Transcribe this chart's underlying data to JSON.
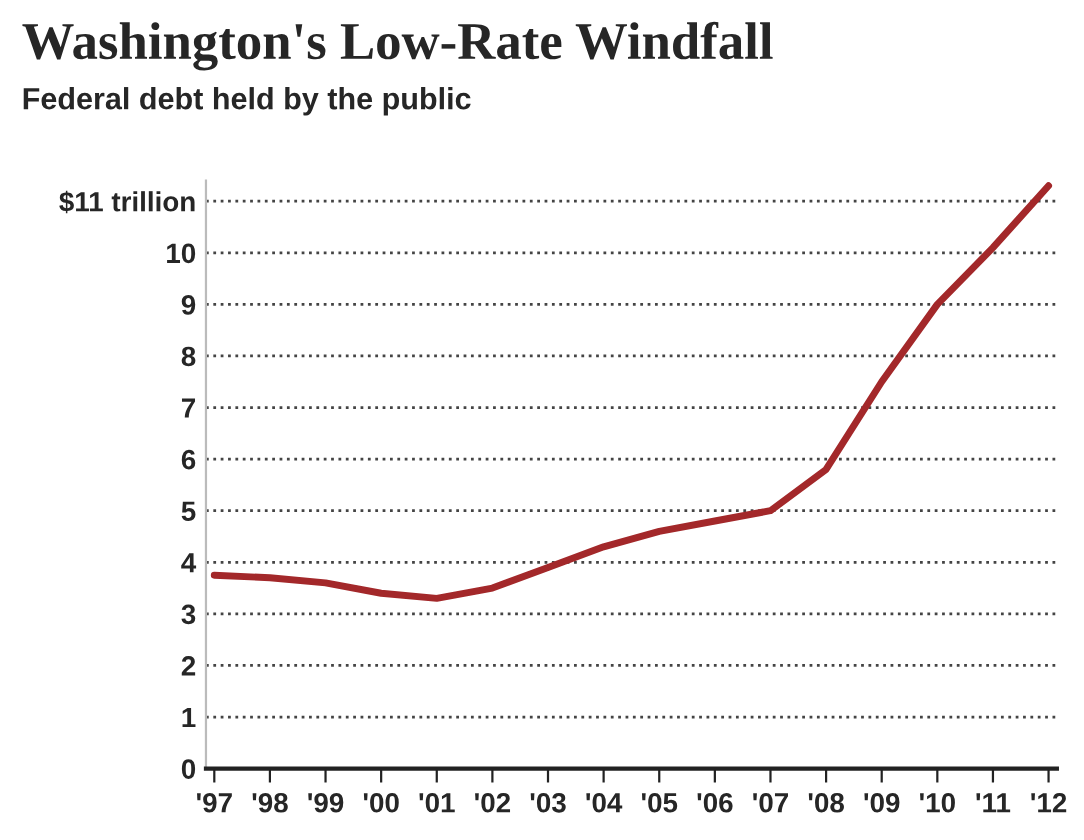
{
  "chart_data": {
    "type": "line",
    "title": "Washington's Low-Rate Windfall",
    "subtitle": "Federal debt held by the public",
    "categories": [
      "'97",
      "'98",
      "'99",
      "'00",
      "'01",
      "'02",
      "'03",
      "'04",
      "'05",
      "'06",
      "'07",
      "'08",
      "'09",
      "'10",
      "'11",
      "'12"
    ],
    "series": [
      {
        "color": "#a3282a",
        "values": [
          3.75,
          3.7,
          3.6,
          3.4,
          3.3,
          3.5,
          3.9,
          4.3,
          4.6,
          4.8,
          5.0,
          5.8,
          7.5,
          9.0,
          10.1,
          11.3
        ]
      }
    ],
    "ylim": [
      0,
      11.4
    ],
    "yticks": [
      0,
      1,
      2,
      3,
      4,
      5,
      6,
      7,
      8,
      9,
      10,
      {
        "value": 11,
        "label": "$11 trillion"
      }
    ],
    "grid": "y",
    "legend": false,
    "marker": "none",
    "line_style": "solid"
  }
}
